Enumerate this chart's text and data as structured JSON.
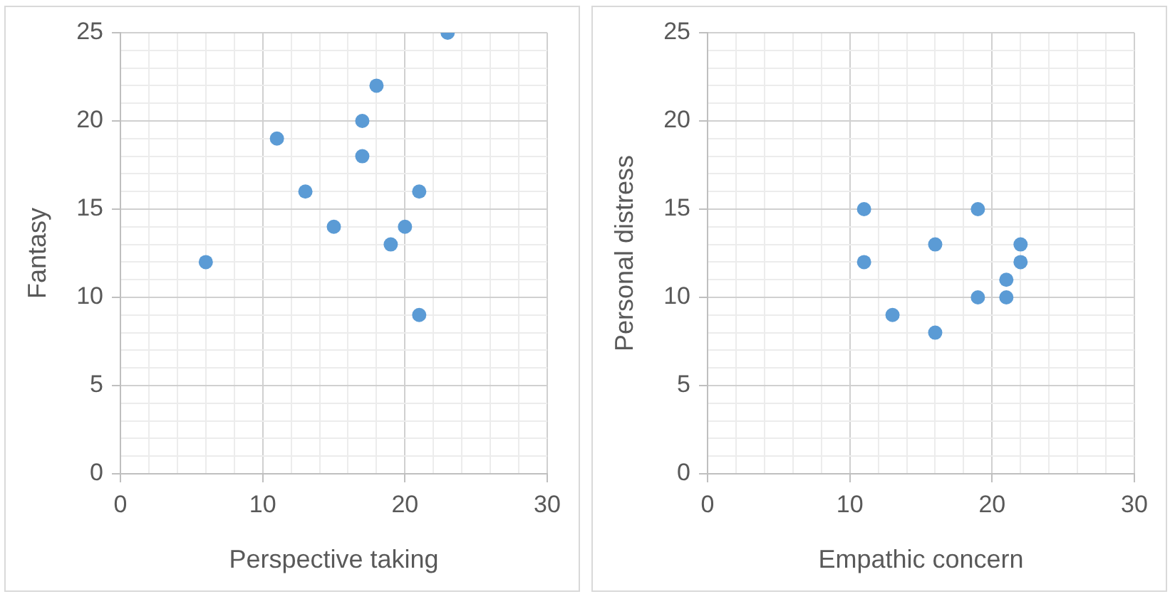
{
  "chart_data": [
    {
      "type": "scatter",
      "xlabel": "Perspective taking",
      "ylabel": "Fantasy",
      "x": [
        6,
        11,
        13,
        15,
        17,
        17,
        18,
        19,
        20,
        21,
        21,
        23
      ],
      "series": [
        {
          "color": "#5b9bd5",
          "values": [
            12,
            19,
            16,
            14,
            20,
            18,
            22,
            13,
            14,
            16,
            9,
            25
          ]
        }
      ],
      "xlim": [
        0,
        30
      ],
      "xticks": [
        0,
        {
          "value": 2,
          "label": null
        },
        {
          "value": 4,
          "label": null
        },
        {
          "value": 6,
          "label": null
        },
        {
          "value": 8,
          "label": null
        },
        10,
        {
          "value": 12,
          "label": null
        },
        {
          "value": 14,
          "label": null
        },
        {
          "value": 16,
          "label": null
        },
        {
          "value": 18,
          "label": null
        },
        20,
        {
          "value": 22,
          "label": null
        },
        {
          "value": 24,
          "label": null
        },
        {
          "value": 26,
          "label": null
        },
        {
          "value": 28,
          "label": null
        },
        30
      ],
      "ylim": [
        0,
        25
      ],
      "yticks": [
        0,
        {
          "value": 1,
          "label": null
        },
        {
          "value": 2,
          "label": null
        },
        {
          "value": 3,
          "label": null
        },
        {
          "value": 4,
          "label": null
        },
        5,
        {
          "value": 6,
          "label": null
        },
        {
          "value": 7,
          "label": null
        },
        {
          "value": 8,
          "label": null
        },
        {
          "value": 9,
          "label": null
        },
        10,
        {
          "value": 11,
          "label": null
        },
        {
          "value": 12,
          "label": null
        },
        {
          "value": 13,
          "label": null
        },
        {
          "value": 14,
          "label": null
        },
        15,
        {
          "value": 16,
          "label": null
        },
        {
          "value": 17,
          "label": null
        },
        {
          "value": 18,
          "label": null
        },
        {
          "value": 19,
          "label": null
        },
        20,
        {
          "value": 21,
          "label": null
        },
        {
          "value": 22,
          "label": null
        },
        {
          "value": 23,
          "label": null
        },
        {
          "value": 24,
          "label": null
        },
        25
      ],
      "grid": true,
      "legend": false,
      "marker": "circle"
    },
    {
      "type": "scatter",
      "xlabel": "Empathic concern",
      "ylabel": "Personal distress",
      "x": [
        11,
        11,
        13,
        16,
        16,
        19,
        19,
        21,
        21,
        22,
        22
      ],
      "series": [
        {
          "color": "#5b9bd5",
          "values": [
            15,
            12,
            9,
            13,
            8,
            15,
            10,
            11,
            10,
            13,
            12
          ]
        }
      ],
      "xlim": [
        0,
        30
      ],
      "xticks": [
        0,
        {
          "value": 2,
          "label": null
        },
        {
          "value": 4,
          "label": null
        },
        {
          "value": 6,
          "label": null
        },
        {
          "value": 8,
          "label": null
        },
        10,
        {
          "value": 12,
          "label": null
        },
        {
          "value": 14,
          "label": null
        },
        {
          "value": 16,
          "label": null
        },
        {
          "value": 18,
          "label": null
        },
        20,
        {
          "value": 22,
          "label": null
        },
        {
          "value": 24,
          "label": null
        },
        {
          "value": 26,
          "label": null
        },
        {
          "value": 28,
          "label": null
        },
        30
      ],
      "ylim": [
        0,
        25
      ],
      "yticks": [
        0,
        {
          "value": 1,
          "label": null
        },
        {
          "value": 2,
          "label": null
        },
        {
          "value": 3,
          "label": null
        },
        {
          "value": 4,
          "label": null
        },
        5,
        {
          "value": 6,
          "label": null
        },
        {
          "value": 7,
          "label": null
        },
        {
          "value": 8,
          "label": null
        },
        {
          "value": 9,
          "label": null
        },
        10,
        {
          "value": 11,
          "label": null
        },
        {
          "value": 12,
          "label": null
        },
        {
          "value": 13,
          "label": null
        },
        {
          "value": 14,
          "label": null
        },
        15,
        {
          "value": 16,
          "label": null
        },
        {
          "value": 17,
          "label": null
        },
        {
          "value": 18,
          "label": null
        },
        {
          "value": 19,
          "label": null
        },
        20,
        {
          "value": 21,
          "label": null
        },
        {
          "value": 22,
          "label": null
        },
        {
          "value": 23,
          "label": null
        },
        {
          "value": 24,
          "label": null
        },
        25
      ],
      "grid": true,
      "legend": false,
      "marker": "circle"
    }
  ]
}
